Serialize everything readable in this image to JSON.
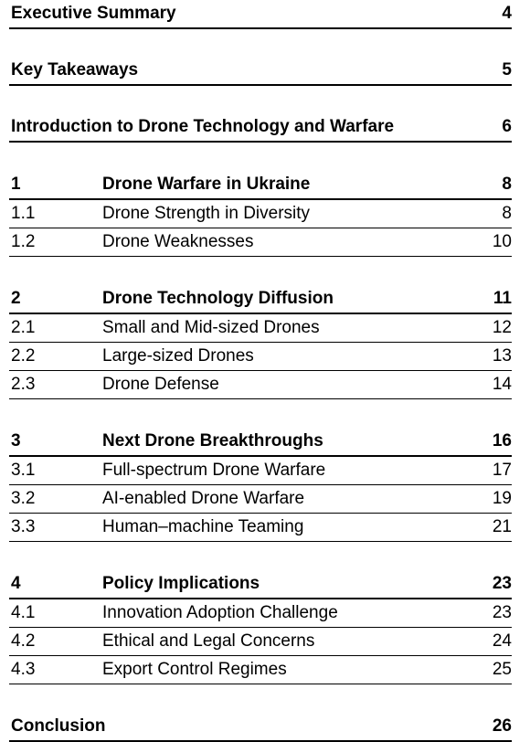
{
  "toc": {
    "executive_summary": {
      "title": "Executive Summary",
      "page": "4"
    },
    "key_takeaways": {
      "title": "Key Takeaways",
      "page": "5"
    },
    "introduction": {
      "title": "Introduction to Drone Technology and Warfare",
      "page": "6"
    },
    "sections": [
      {
        "number": "1",
        "title": "Drone Warfare in Ukraine",
        "page": "8",
        "subsections": [
          {
            "number": "1.1",
            "title": "Drone Strength in Diversity",
            "page": "8"
          },
          {
            "number": "1.2",
            "title": "Drone Weaknesses",
            "page": "10"
          }
        ]
      },
      {
        "number": "2",
        "title": "Drone Technology Diffusion",
        "page": "11",
        "subsections": [
          {
            "number": "2.1",
            "title": "Small and Mid-sized Drones",
            "page": "12"
          },
          {
            "number": "2.2",
            "title": "Large-sized Drones",
            "page": "13"
          },
          {
            "number": "2.3",
            "title": "Drone Defense",
            "page": "14"
          }
        ]
      },
      {
        "number": "3",
        "title": "Next Drone Breakthroughs",
        "page": "16",
        "subsections": [
          {
            "number": "3.1",
            "title": "Full-spectrum Drone Warfare",
            "page": "17"
          },
          {
            "number": "3.2",
            "title": "AI-enabled Drone Warfare",
            "page": "19"
          },
          {
            "number": "3.3",
            "title": "Human–machine Teaming",
            "page": "21"
          }
        ]
      },
      {
        "number": "4",
        "title": "Policy Implications",
        "page": "23",
        "subsections": [
          {
            "number": "4.1",
            "title": "Innovation Adoption Challenge",
            "page": "23"
          },
          {
            "number": "4.2",
            "title": "Ethical and Legal Concerns",
            "page": "24"
          },
          {
            "number": "4.3",
            "title": "Export Control Regimes",
            "page": "25"
          }
        ]
      }
    ],
    "conclusion": {
      "title": "Conclusion",
      "page": "26"
    }
  }
}
